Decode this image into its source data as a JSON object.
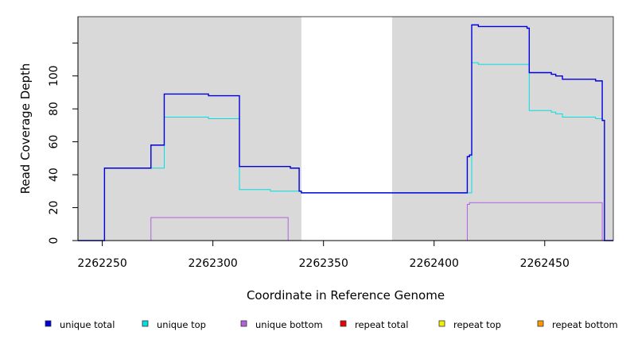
{
  "chart_data": {
    "type": "line",
    "title": "",
    "xlabel": "Coordinate in Reference Genome",
    "ylabel": "Read Coverage Depth",
    "xlim": [
      2262239,
      2262481
    ],
    "ylim": [
      0,
      136
    ],
    "x_ticks": [
      2262250,
      2262300,
      2262350,
      2262400,
      2262450
    ],
    "y_ticks": [
      0,
      20,
      40,
      60,
      80,
      100,
      120
    ],
    "y_tick_labels": [
      "0",
      "20",
      "40",
      "60",
      "80",
      "100",
      ""
    ],
    "grid": false,
    "shaded_regions": [
      {
        "from": 2262239,
        "to": 2262340
      },
      {
        "from": 2262381,
        "to": 2262481
      }
    ],
    "legend_position": "bottom",
    "series": [
      {
        "name": "unique total",
        "color": "#0000dd",
        "x": [
          2262239,
          2262251,
          2262272,
          2262278,
          2262298,
          2262312,
          2262326,
          2262335,
          2262339,
          2262340,
          2262381,
          2262415,
          2262416,
          2262417,
          2262420,
          2262442,
          2262443,
          2262453,
          2262455,
          2262458,
          2262473,
          2262476,
          2262477,
          2262478,
          2262481
        ],
        "y": [
          0,
          44,
          58,
          89,
          88,
          45,
          45,
          44,
          30,
          29,
          29,
          51,
          52,
          131,
          130,
          129,
          102,
          101,
          100,
          98,
          97,
          73,
          0,
          0,
          0
        ]
      },
      {
        "name": "unique top",
        "color": "#00e0e0",
        "x": [
          2262239,
          2262251,
          2262272,
          2262278,
          2262298,
          2262312,
          2262326,
          2262335,
          2262339,
          2262340,
          2262381,
          2262415,
          2262416,
          2262417,
          2262420,
          2262442,
          2262443,
          2262453,
          2262455,
          2262458,
          2262473,
          2262476,
          2262477,
          2262478,
          2262481
        ],
        "y": [
          0,
          44,
          44,
          75,
          74,
          31,
          30,
          30,
          30,
          29,
          29,
          29,
          29,
          108,
          107,
          107,
          79,
          78,
          77,
          75,
          74,
          73,
          0,
          0,
          0
        ]
      },
      {
        "name": "unique bottom",
        "color": "#b060e0",
        "x": [
          2262239,
          2262272,
          2262334,
          2262415,
          2262416,
          2262476,
          2262481
        ],
        "y": [
          0,
          14,
          0,
          22,
          23,
          0,
          0
        ]
      },
      {
        "name": "repeat total",
        "color": "#ee0000",
        "x": [
          2262239,
          2262481
        ],
        "y": [
          0,
          0
        ]
      },
      {
        "name": "repeat top",
        "color": "#f0f000",
        "x": [
          2262239,
          2262481
        ],
        "y": [
          0,
          0
        ]
      },
      {
        "name": "repeat bottom",
        "color": "#ff9900",
        "x": [
          2262239,
          2262481
        ],
        "y": [
          0,
          0
        ]
      }
    ]
  }
}
